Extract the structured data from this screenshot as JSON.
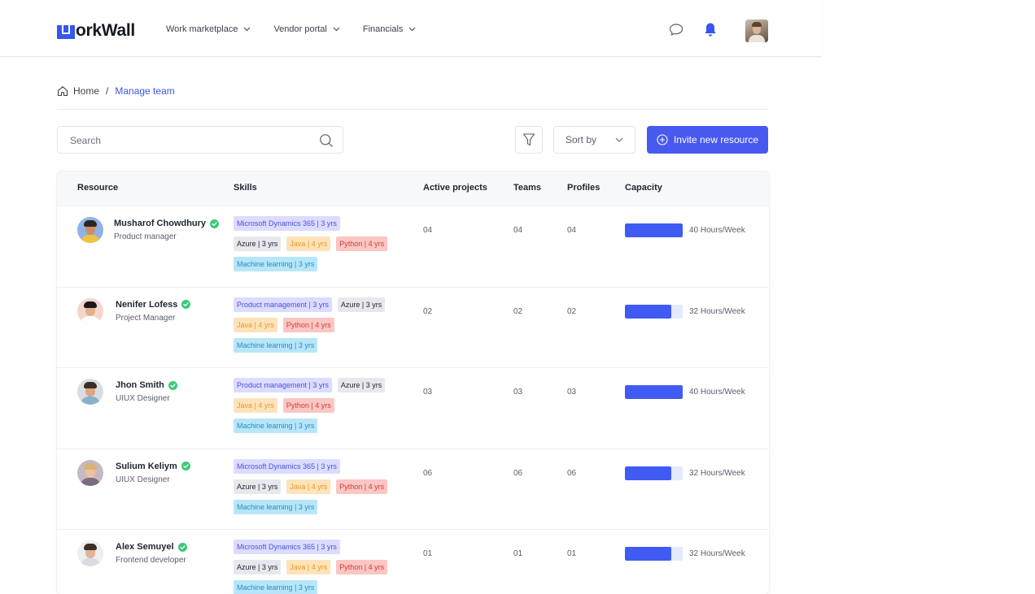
{
  "app": {
    "logo_text": "orkWall",
    "logo_full": "WorkWall"
  },
  "nav": [
    {
      "label": "Work marketplace"
    },
    {
      "label": "Vendor portal"
    },
    {
      "label": "Financials"
    }
  ],
  "breadcrumb": {
    "home": "Home",
    "separator": "/",
    "current": "Manage team"
  },
  "toolbar": {
    "search_placeholder": "Search",
    "sort_label": "Sort by",
    "invite_label": "Invite new resource"
  },
  "table": {
    "headers": [
      "Resource",
      "Skills",
      "Active projects",
      "Teams",
      "Profiles",
      "Capacity"
    ],
    "rows": [
      {
        "name": "Musharof Chowdhury",
        "role": "Product manager",
        "skills": [
          [
            {
              "label": "Microsoft Dynamics 365 | 3 yrs",
              "color": "purple"
            }
          ],
          [
            {
              "label": "Azure | 3 yrs",
              "color": "gray"
            },
            {
              "label": "Java | 4 yrs",
              "color": "yellow"
            },
            {
              "label": "Python | 4 yrs",
              "color": "red"
            }
          ],
          [
            {
              "label": "Machine learning | 3 yrs",
              "color": "cyan"
            }
          ]
        ],
        "active_projects": "04",
        "teams": "04",
        "profiles": "04",
        "capacity_fraction": 1.0,
        "capacity_text": "40 Hours/Week"
      },
      {
        "name": "Nenifer Lofess",
        "role": "Project Manager",
        "skills": [
          [
            {
              "label": "Product management | 3 yrs",
              "color": "purple"
            },
            {
              "label": "Azure | 3 yrs",
              "color": "gray"
            }
          ],
          [
            {
              "label": "Java | 4 yrs",
              "color": "yellow"
            },
            {
              "label": "Python | 4 yrs",
              "color": "red"
            }
          ],
          [
            {
              "label": "Machine learning | 3 yrs",
              "color": "cyan"
            }
          ]
        ],
        "active_projects": "02",
        "teams": "02",
        "profiles": "02",
        "capacity_fraction": 0.8,
        "capacity_text": "32 Hours/Week"
      },
      {
        "name": "Jhon Smith",
        "role": "UIUX Designer",
        "skills": [
          [
            {
              "label": "Product management | 3 yrs",
              "color": "purple"
            },
            {
              "label": "Azure | 3 yrs",
              "color": "gray"
            }
          ],
          [
            {
              "label": "Java | 4 yrs",
              "color": "yellow"
            },
            {
              "label": "Python | 4 yrs",
              "color": "red"
            }
          ],
          [
            {
              "label": "Machine learning | 3 yrs",
              "color": "cyan"
            }
          ]
        ],
        "active_projects": "03",
        "teams": "03",
        "profiles": "03",
        "capacity_fraction": 1.0,
        "capacity_text": "40 Hours/Week"
      },
      {
        "name": "Sulium Keliym",
        "role": "UIUX Designer",
        "skills": [
          [
            {
              "label": "Microsoft Dynamics 365 | 3 yrs",
              "color": "purple"
            }
          ],
          [
            {
              "label": "Azure | 3 yrs",
              "color": "gray"
            },
            {
              "label": "Java | 4 yrs",
              "color": "yellow"
            },
            {
              "label": "Python | 4 yrs",
              "color": "red"
            }
          ],
          [
            {
              "label": "Machine learning | 3 yrs",
              "color": "cyan"
            }
          ]
        ],
        "active_projects": "06",
        "teams": "06",
        "profiles": "06",
        "capacity_fraction": 0.8,
        "capacity_text": "32 Hours/Week"
      },
      {
        "name": "Alex Semuyel",
        "role": "Frontend developer",
        "skills": [
          [
            {
              "label": "Microsoft Dynamics 365 | 3 yrs",
              "color": "purple"
            }
          ],
          [
            {
              "label": "Azure | 3 yrs",
              "color": "gray"
            },
            {
              "label": "Java | 4 yrs",
              "color": "yellow"
            },
            {
              "label": "Python | 4 yrs",
              "color": "red"
            }
          ],
          [
            {
              "label": "Machine learning | 3 yrs",
              "color": "cyan"
            }
          ]
        ],
        "active_projects": "01",
        "teams": "01",
        "profiles": "01",
        "capacity_fraction": 0.8,
        "capacity_text": "32 Hours/Week"
      }
    ]
  },
  "colors": {
    "accent": "#4859f0",
    "capacity_fill": "#3f5bf3",
    "verified": "#3cc878"
  },
  "icons": {
    "nav_chevron": "chevron-down-icon",
    "chat": "chat-icon",
    "notifications": "bell-icon",
    "home": "home-icon",
    "search": "search-icon",
    "filter": "filter-icon",
    "invite": "plus-circle-icon",
    "verified": "verified-check-icon"
  }
}
